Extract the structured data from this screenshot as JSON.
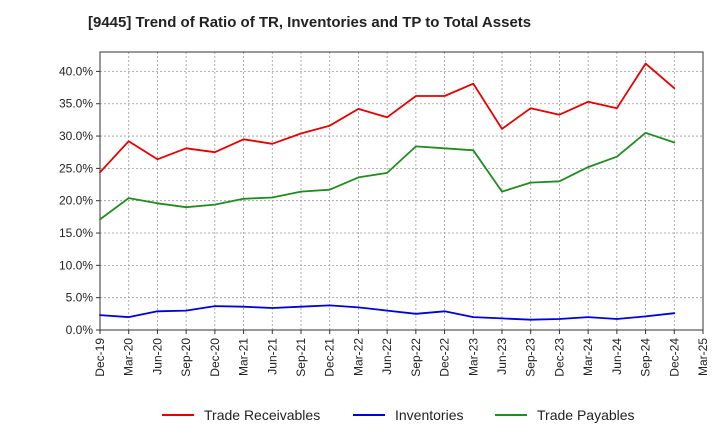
{
  "chart_data": {
    "type": "line",
    "title": "[9445]  Trend of Ratio of TR, Inventories and TP to Total Assets",
    "xlabel": "",
    "ylabel": "",
    "x": [
      "Dec-19",
      "Mar-20",
      "Jun-20",
      "Sep-20",
      "Dec-20",
      "Mar-21",
      "Jun-21",
      "Sep-21",
      "Dec-21",
      "Mar-22",
      "Jun-22",
      "Sep-22",
      "Dec-22",
      "Mar-23",
      "Jun-23",
      "Sep-23",
      "Dec-23",
      "Mar-24",
      "Jun-24",
      "Sep-24",
      "Dec-24"
    ],
    "x_tick_labels": [
      "Dec-19",
      "Mar-20",
      "Jun-20",
      "Sep-20",
      "Dec-20",
      "Mar-21",
      "Jun-21",
      "Sep-21",
      "Dec-21",
      "Mar-22",
      "Jun-22",
      "Sep-22",
      "Dec-22",
      "Mar-23",
      "Jun-23",
      "Sep-23",
      "Dec-23",
      "Mar-24",
      "Jun-24",
      "Sep-24",
      "Dec-24",
      "Mar-25"
    ],
    "y_tick_labels": [
      "0.0%",
      "5.0%",
      "10.0%",
      "15.0%",
      "20.0%",
      "25.0%",
      "30.0%",
      "35.0%",
      "40.0%"
    ],
    "ylim": [
      0,
      43
    ],
    "grid": true,
    "legend_position": "bottom",
    "series": [
      {
        "name": "Trade Receivables",
        "color": "#e60000",
        "values": [
          24.4,
          29.2,
          26.4,
          28.1,
          27.5,
          29.5,
          28.8,
          30.4,
          31.6,
          34.2,
          32.9,
          36.2,
          36.2,
          38.1,
          31.1,
          34.3,
          33.3,
          35.3,
          34.3,
          41.2,
          37.4
        ]
      },
      {
        "name": "Inventories",
        "color": "#0000dd",
        "values": [
          2.3,
          2.0,
          2.9,
          3.0,
          3.7,
          3.6,
          3.4,
          3.6,
          3.8,
          3.5,
          3.0,
          2.5,
          2.9,
          2.0,
          1.8,
          1.6,
          1.7,
          2.0,
          1.7,
          2.1,
          2.6
        ]
      },
      {
        "name": "Trade Payables",
        "color": "#228b22",
        "values": [
          17.1,
          20.4,
          19.6,
          19.0,
          19.4,
          20.3,
          20.5,
          21.4,
          21.7,
          23.6,
          24.3,
          28.4,
          28.1,
          27.8,
          21.4,
          22.8,
          23.0,
          25.2,
          26.8,
          30.5,
          29.0
        ]
      }
    ]
  }
}
